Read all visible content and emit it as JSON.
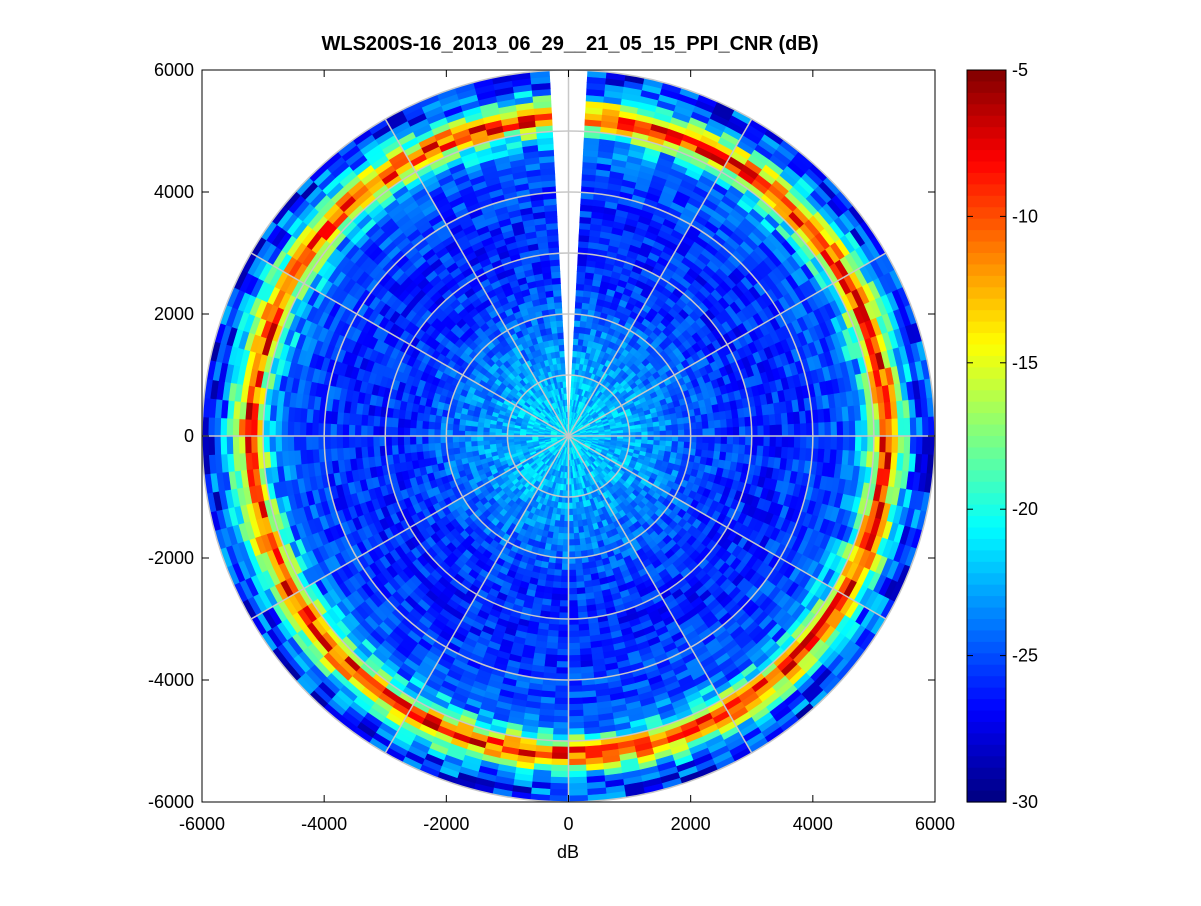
{
  "chart_data": {
    "type": "heatmap",
    "projection": "polar-ppi",
    "title": "WLS200S-16_2013_06_29__21_05_15_PPI_CNR (dB)",
    "xlabel": "dB",
    "ylabel": "",
    "xlim": [
      -6000,
      6000
    ],
    "ylim": [
      -6000,
      6000
    ],
    "x_ticks": [
      "-6000",
      "-4000",
      "-2000",
      "0",
      "2000",
      "4000",
      "6000"
    ],
    "y_ticks": [
      "6000",
      "4000",
      "2000",
      "0",
      "-2000",
      "-4000",
      "-6000"
    ],
    "range_rings": [
      1000,
      2000,
      3000,
      4000,
      5000,
      6000
    ],
    "radial_spokes_deg": [
      0,
      30,
      60,
      90,
      120,
      150,
      180,
      210,
      240,
      270,
      300,
      330
    ],
    "missing_sector_deg": [
      -4,
      4
    ],
    "max_range": 6000,
    "grid": true,
    "colormap": "jet",
    "colorbar": {
      "clim": [
        -30,
        -5
      ],
      "ticks": [
        "-5",
        "-10",
        "-15",
        "-20",
        "-25",
        "-30"
      ],
      "placement": "right"
    },
    "radial_profile": {
      "range": [
        0,
        500,
        1000,
        1500,
        2000,
        2500,
        3000,
        3500,
        4000,
        4500,
        4800,
        5000,
        5200,
        5300,
        5500,
        5700,
        6000
      ],
      "cnr_db": [
        -21,
        -22,
        -22.5,
        -23.5,
        -24.5,
        -25.5,
        -26,
        -26,
        -25.5,
        -25,
        -23,
        -18,
        -7,
        -12,
        -19,
        -25,
        -26
      ]
    }
  }
}
